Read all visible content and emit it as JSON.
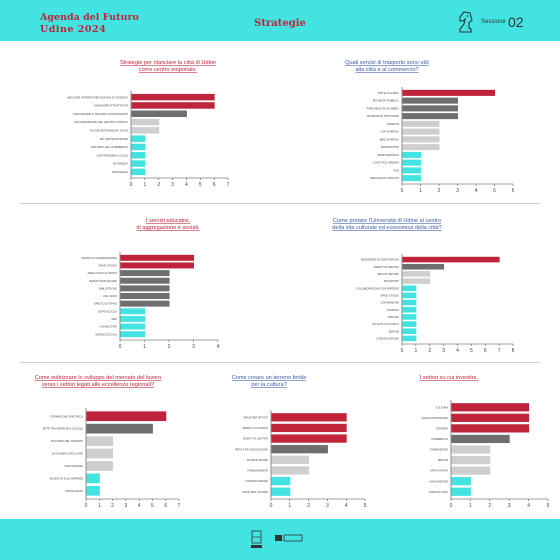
{
  "header": {
    "line1": "Agenda del Futuro",
    "line2": "Udine 2024",
    "center": "Strategie",
    "session_label": "Sessione",
    "session_number": "02"
  },
  "colors": {
    "band": "#43e3e1",
    "red": "#c0243a",
    "dark_gray": "#6e6e6e",
    "light_gray": "#cfcfcf",
    "cyan": "#43e3e1",
    "title_red": "#c0243a",
    "title_blue": "#3a5aa8"
  },
  "chart_data": [
    {
      "type": "bar",
      "orientation": "horizontal",
      "title_lines": [
        "Strategie per rilanciare la città di Udine",
        "come centro emporiale."
      ],
      "categories": [
        "MIGLIORE OFFERTA PER GIOVANI E STUDENTI",
        "MAGGIORE ATTRATTIVITÀ",
        "SUPPORTARE IL NEGOZIO DI PROSSIMITÀ",
        "VALORIZZAZIONE DEL CENTRO STORICO",
        "NUOVE DESTINAZIONI D'USO",
        "PIÙ PARTECIPAZIONE",
        "SVILUPPO DEL COMMERCIO",
        "GASTRONOMIA LOCALE",
        "SICUREZZA",
        "PARCHEGGI"
      ],
      "values": [
        6,
        6,
        4,
        2,
        2,
        1,
        1,
        1,
        1,
        1
      ],
      "colors": [
        "red",
        "red",
        "dark_gray",
        "light_gray",
        "light_gray",
        "cyan",
        "cyan",
        "cyan",
        "cyan",
        "cyan"
      ],
      "xlim": [
        0,
        7
      ],
      "xticks": [
        "0",
        "1",
        "2",
        "3",
        "4",
        "5",
        "6",
        "7"
      ]
    },
    {
      "type": "bar",
      "orientation": "horizontal",
      "title_lines": [
        "Quali servizi di trasporto sono utili",
        "alla città e al commercio?"
      ],
      "categories": [
        "PISTE CICLABILI",
        "PIÙ MEZZI PUBBLICI",
        "PARCHEGGI DI SCAMBIO",
        "TRASPORTO NOTTURNO",
        "NAVETTE",
        "CAR SHARING",
        "BIKE SHARING",
        "MONOPATTINI",
        "ZONE PEDONALI",
        "LOGISTICA URBANA",
        "TAXI",
        "PARCHEGGI GRATUITI"
      ],
      "values": [
        5,
        3,
        3,
        3,
        2,
        2,
        2,
        2,
        1,
        1,
        1,
        1
      ],
      "colors": [
        "red",
        "dark_gray",
        "dark_gray",
        "dark_gray",
        "light_gray",
        "light_gray",
        "light_gray",
        "light_gray",
        "cyan",
        "cyan",
        "cyan",
        "cyan"
      ],
      "xlim": [
        0,
        6
      ],
      "xticks": [
        "0",
        "1",
        "2",
        "3",
        "4",
        "5",
        "6"
      ]
    },
    {
      "type": "bar",
      "orientation": "horizontal",
      "title_lines": [
        "I servizi educativi,",
        "di aggregazione e sociali."
      ],
      "categories": [
        "CENTRI DI AGGREGAZIONE",
        "SPAZI STUDIO",
        "AREE GIOCO E SPORT",
        "SERVIZI PER ANZIANI",
        "BIBLIOTECHE",
        "ASILI NIDO",
        "SPAZI CULTURALI",
        "DOPOSCUOLA",
        "WIFI",
        "CONSULTORI",
        "SERVIZI SOCIALI"
      ],
      "values": [
        3,
        3,
        2,
        2,
        2,
        2,
        2,
        1,
        1,
        1,
        1
      ],
      "colors": [
        "red",
        "red",
        "dark_gray",
        "dark_gray",
        "dark_gray",
        "dark_gray",
        "dark_gray",
        "cyan",
        "cyan",
        "cyan",
        "cyan"
      ],
      "xlim": [
        0,
        4
      ],
      "xticks": [
        "0",
        "1",
        "2",
        "3",
        "4"
      ]
    },
    {
      "type": "bar",
      "orientation": "horizontal",
      "title_lines": [
        "Come portare l'Università di Udine al centro",
        "della vita culturale ed economica della città?"
      ],
      "categories": [
        "RESIDENZE STUDENTESCHE",
        "EVENTI IN CENTRO",
        "SEDI IN CENTRO",
        "TRASPORTI",
        "COLLABORAZIONI CON IMPRESE",
        "SPAZI STUDIO",
        "CONVENZIONI",
        "STARTUP",
        "TIROCINI",
        "ATTIVITÀ CULTURALI",
        "SERVIZI",
        "COMUNICAZIONE"
      ],
      "values": [
        7,
        3,
        2,
        2,
        1,
        1,
        1,
        1,
        1,
        1,
        1,
        1
      ],
      "colors": [
        "red",
        "dark_gray",
        "light_gray",
        "light_gray",
        "cyan",
        "cyan",
        "cyan",
        "cyan",
        "cyan",
        "cyan",
        "cyan",
        "cyan"
      ],
      "xlim": [
        0,
        8
      ],
      "xticks": [
        "0",
        "1",
        "2",
        "3",
        "4",
        "5",
        "6",
        "7",
        "8"
      ]
    },
    {
      "type": "bar",
      "orientation": "horizontal",
      "title_lines": [
        "Come indirizzare lo sviluppo del mercato del lavoro",
        "verso i settori legati alle eccellenze regionali?"
      ],
      "categories": [
        "FORMAZIONE SPECIFICA",
        "RETE TRA IMPRESE E SCUOLE",
        "SVILUPPO DEL TURISMO",
        "ECONOMIA CIRCOLARE",
        "INNOVAZIONE",
        "INCENTIVI ALLE IMPRESE",
        "ARTIGIANATO"
      ],
      "values": [
        6,
        5,
        2,
        2,
        2,
        1,
        1
      ],
      "colors": [
        "red",
        "dark_gray",
        "light_gray",
        "light_gray",
        "light_gray",
        "cyan",
        "cyan"
      ],
      "xlim": [
        0,
        7
      ],
      "xticks": [
        "0",
        "1",
        "2",
        "3",
        "4",
        "5",
        "6",
        "7"
      ]
    },
    {
      "type": "bar",
      "orientation": "horizontal",
      "title_lines": [
        "Come creare un terreno fertile",
        "per la cultura?"
      ],
      "categories": [
        "SPAZI PER ARTISTI",
        "EVENTI CULTURALI",
        "EVENTI IN CENTRO",
        "RETE TRA ASSOCIAZIONI",
        "MUSEI E TEATRI",
        "FINANZIAMENTI",
        "COMUNICAZIONE",
        "SPAZI PER GIOVANI"
      ],
      "values": [
        4,
        4,
        4,
        3,
        2,
        2,
        1,
        1
      ],
      "colors": [
        "red",
        "red",
        "red",
        "dark_gray",
        "light_gray",
        "light_gray",
        "cyan",
        "cyan"
      ],
      "xlim": [
        0,
        5
      ],
      "xticks": [
        "0",
        "1",
        "2",
        "3",
        "4",
        "5"
      ]
    },
    {
      "type": "bar",
      "orientation": "horizontal",
      "title_lines": [
        "I settori su cui investire."
      ],
      "categories": [
        "CULTURA",
        "ENOGASTRONOMIA",
        "TURISMO",
        "COMMERCIO",
        "FORMAZIONE",
        "SERVIZI",
        "ARTIGIANATO",
        "INNOVAZIONE",
        "AGRICOLTURA"
      ],
      "values": [
        4,
        4,
        4,
        3,
        2,
        2,
        2,
        1,
        1
      ],
      "colors": [
        "red",
        "red",
        "red",
        "dark_gray",
        "light_gray",
        "light_gray",
        "light_gray",
        "cyan",
        "cyan"
      ],
      "xlim": [
        0,
        5
      ],
      "xticks": [
        "0",
        "1",
        "2",
        "3",
        "4",
        "5"
      ]
    }
  ]
}
